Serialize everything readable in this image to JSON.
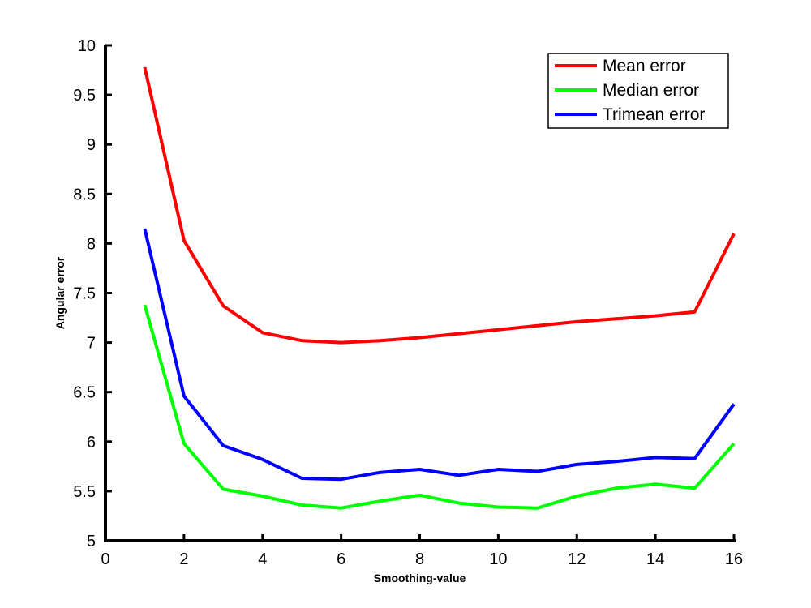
{
  "chart_data": {
    "type": "line",
    "title": "",
    "xlabel": "Smoothing-value",
    "ylabel": "Angular error",
    "xlim": [
      0,
      16
    ],
    "ylim": [
      5,
      10
    ],
    "xticks": [
      "0",
      "2",
      "4",
      "6",
      "8",
      "10",
      "12",
      "14",
      "16"
    ],
    "yticks": [
      "5",
      "5.5",
      "6",
      "6.5",
      "7",
      "7.5",
      "8",
      "8.5",
      "9",
      "9.5",
      "10"
    ],
    "grid": false,
    "legend_position": "top-right",
    "x": [
      1,
      2,
      3,
      4,
      5,
      6,
      7,
      8,
      9,
      10,
      11,
      12,
      13,
      14,
      15,
      16
    ],
    "series": [
      {
        "name": "Mean error",
        "color": "#ff0000",
        "values": [
          9.78,
          8.03,
          7.37,
          7.1,
          7.02,
          7.0,
          7.02,
          7.05,
          7.09,
          7.13,
          7.17,
          7.21,
          7.24,
          7.27,
          7.31,
          8.1
        ]
      },
      {
        "name": "Median error",
        "color": "#00ff00",
        "values": [
          7.38,
          5.98,
          5.52,
          5.45,
          5.36,
          5.33,
          5.4,
          5.46,
          5.38,
          5.34,
          5.33,
          5.45,
          5.53,
          5.57,
          5.53,
          5.98
        ]
      },
      {
        "name": "Trimean error",
        "color": "#0000ff",
        "values": [
          8.15,
          6.46,
          5.96,
          5.82,
          5.63,
          5.62,
          5.69,
          5.72,
          5.66,
          5.72,
          5.7,
          5.77,
          5.8,
          5.84,
          5.83,
          6.38
        ]
      }
    ]
  }
}
